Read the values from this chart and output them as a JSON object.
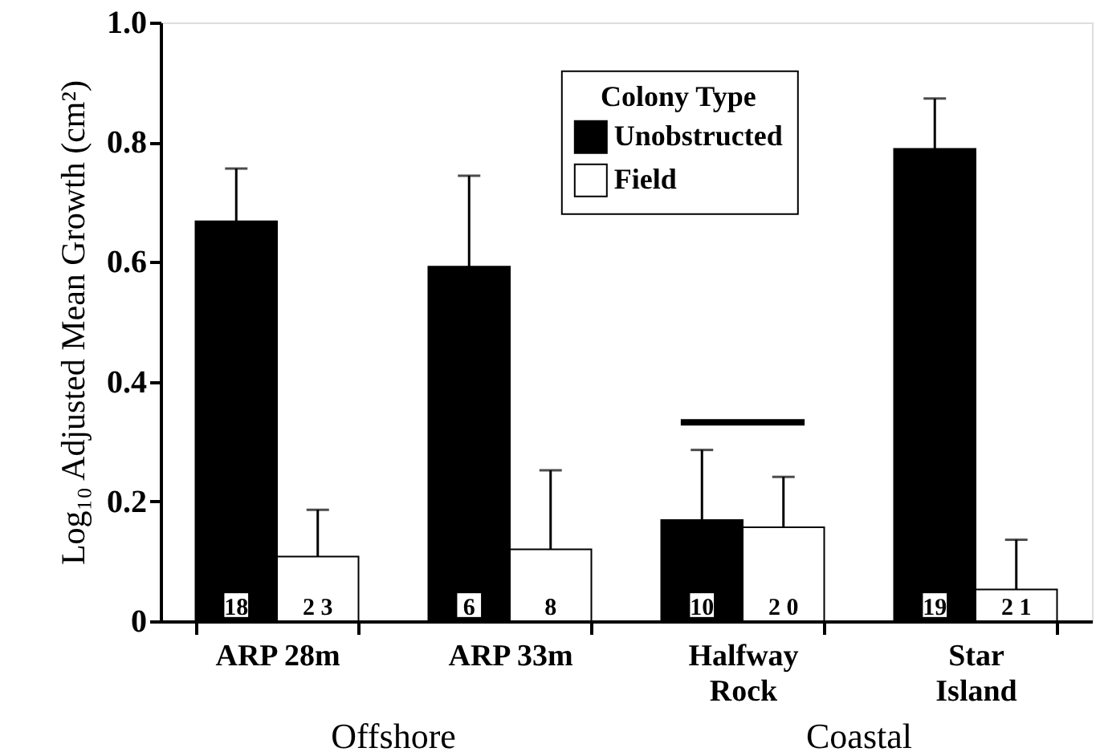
{
  "chart_data": {
    "type": "bar",
    "ylabel": "Log₁₀ Adjusted Mean Growth (cm²)",
    "legend_title": "Colony Type",
    "categories": [
      "ARP  28m",
      "ARP  33m",
      "Halfway\nRock",
      "Star\nIsland"
    ],
    "series": [
      {
        "name": "Unobstructed",
        "color": "#000000",
        "values": [
          0.668,
          0.592,
          0.169,
          0.789
        ],
        "errors": [
          [
            0.668,
            0.756
          ],
          [
            0.592,
            0.744
          ],
          [
            0.169,
            0.286
          ],
          [
            0.789,
            0.873
          ]
        ]
      },
      {
        "name": "Field",
        "color": "#ffffff",
        "values": [
          0.108,
          0.12,
          0.157,
          0.053
        ],
        "errors": [
          [
            0.108,
            0.186
          ],
          [
            0.12,
            0.252
          ],
          [
            0.157,
            0.241
          ],
          [
            0.053,
            0.136
          ]
        ]
      }
    ],
    "ref_lines": [
      {
        "axis": "y",
        "value": 0.332,
        "color": "#000000"
      }
    ],
    "annotations": [
      "18",
      "2 3",
      "6",
      "8",
      "10",
      "2 0",
      "19",
      "2 1",
      "Offshore",
      "Coastal"
    ],
    "ylim": [
      0,
      1.0
    ],
    "yticks": [
      {
        "value": 0,
        "label": "0"
      },
      0.2,
      0.4,
      0.6,
      0.8,
      {
        "value": 1.0,
        "label": "1.0"
      }
    ],
    "grid": false,
    "legend": "top"
  }
}
